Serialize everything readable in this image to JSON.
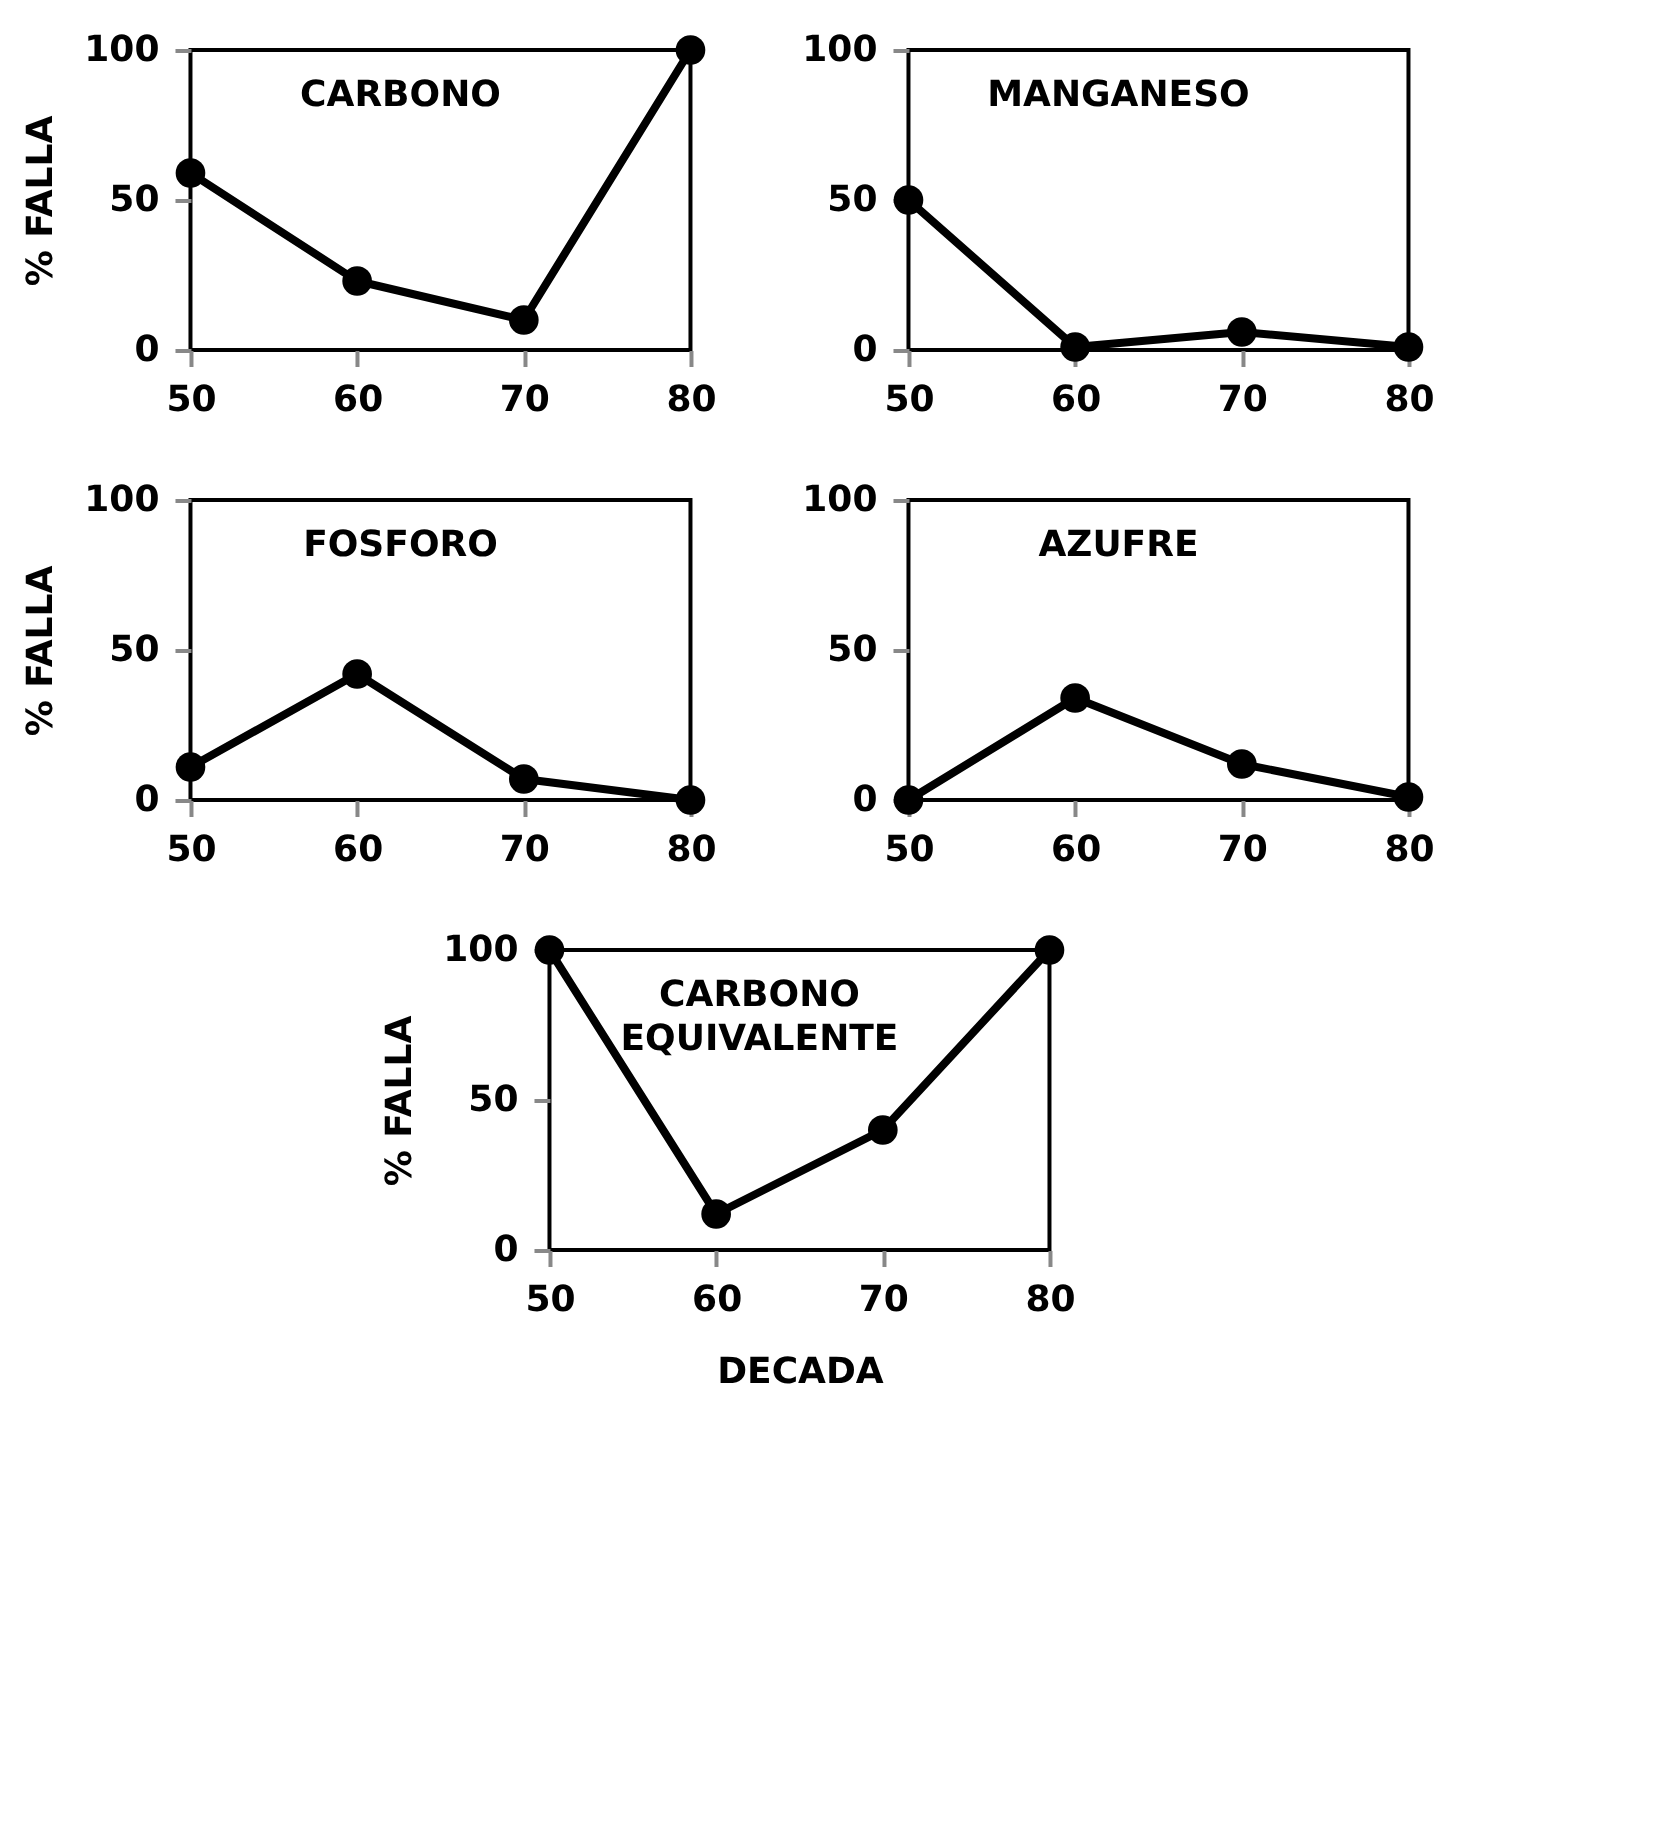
{
  "chart_data": [
    {
      "type": "line",
      "title": "CARBONO",
      "ylabel": "% FALLA",
      "x": [
        50,
        60,
        70,
        80
      ],
      "series": [
        {
          "color": "#000000",
          "values": [
            59,
            23,
            10,
            100
          ]
        }
      ],
      "xlim": [
        50,
        80
      ],
      "xticks": [
        50,
        60,
        70,
        80
      ],
      "ylim": [
        0,
        100
      ],
      "yticks": [
        0,
        50,
        100
      ],
      "marker": "circle",
      "grid": false
    },
    {
      "type": "line",
      "title": "MANGANESO",
      "x": [
        50,
        60,
        70,
        80
      ],
      "series": [
        {
          "color": "#000000",
          "values": [
            50,
            1,
            6,
            1
          ]
        }
      ],
      "xlim": [
        50,
        80
      ],
      "xticks": [
        50,
        60,
        70,
        80
      ],
      "ylim": [
        0,
        100
      ],
      "yticks": [
        0,
        50,
        100
      ],
      "marker": "circle",
      "grid": false
    },
    {
      "type": "line",
      "title": "FOSFORO",
      "ylabel": "% FALLA",
      "x": [
        50,
        60,
        70,
        80
      ],
      "series": [
        {
          "color": "#000000",
          "values": [
            11,
            42,
            7,
            0
          ]
        }
      ],
      "xlim": [
        50,
        80
      ],
      "xticks": [
        50,
        60,
        70,
        80
      ],
      "ylim": [
        0,
        100
      ],
      "yticks": [
        0,
        50,
        100
      ],
      "marker": "circle",
      "grid": false
    },
    {
      "type": "line",
      "title": "AZUFRE",
      "x": [
        50,
        60,
        70,
        80
      ],
      "series": [
        {
          "color": "#000000",
          "values": [
            0,
            34,
            12,
            1
          ]
        }
      ],
      "xlim": [
        50,
        80
      ],
      "xticks": [
        50,
        60,
        70,
        80
      ],
      "ylim": [
        0,
        100
      ],
      "yticks": [
        0,
        50,
        100
      ],
      "marker": "circle",
      "grid": false
    },
    {
      "type": "line",
      "title": "CARBONO EQUIVALENTE",
      "ylabel": "% FALLA",
      "xlabel": "DECADA",
      "x": [
        50,
        60,
        70,
        80
      ],
      "series": [
        {
          "color": "#000000",
          "values": [
            100,
            12,
            40,
            100
          ]
        }
      ],
      "xlim": [
        50,
        80
      ],
      "xticks": [
        50,
        60,
        70,
        80
      ],
      "ylim": [
        0,
        100
      ],
      "yticks": [
        0,
        50,
        100
      ],
      "marker": "circle",
      "grid": false
    }
  ]
}
